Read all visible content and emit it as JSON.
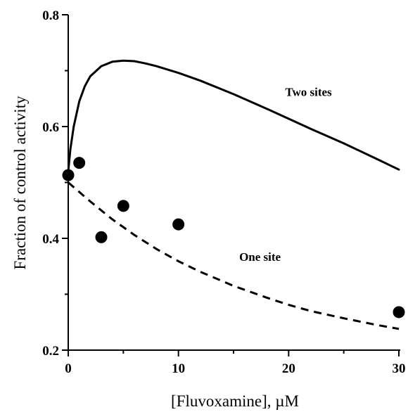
{
  "chart_data": {
    "type": "scatter",
    "xlabel": "[Fluvoxamine], µM",
    "ylabel": "Fraction of control activity",
    "xlim": [
      0,
      30
    ],
    "ylim": [
      0.2,
      0.8
    ],
    "xticks": [
      0,
      10,
      20,
      30
    ],
    "xticks_minor": [
      5,
      15,
      25
    ],
    "yticks": [
      0.2,
      0.4,
      0.6,
      0.8
    ],
    "yticks_minor": [
      0.3,
      0.5,
      0.7
    ],
    "grid": false,
    "points": {
      "x": [
        0,
        1,
        3,
        5,
        10,
        30
      ],
      "y": [
        0.513,
        0.535,
        0.402,
        0.458,
        0.425,
        0.268
      ]
    },
    "curves": [
      {
        "label": "Two sites",
        "style": "solid",
        "x": [
          0,
          0.2,
          0.5,
          1,
          1.5,
          2,
          3,
          4,
          5,
          6,
          7,
          8,
          10,
          12,
          15,
          18,
          20,
          22,
          25,
          28,
          30
        ],
        "y": [
          0.52,
          0.56,
          0.6,
          0.645,
          0.672,
          0.69,
          0.708,
          0.716,
          0.718,
          0.717,
          0.713,
          0.708,
          0.696,
          0.682,
          0.658,
          0.632,
          0.614,
          0.596,
          0.57,
          0.542,
          0.523
        ]
      },
      {
        "label": "One site",
        "style": "dashed",
        "x": [
          0,
          2,
          4,
          6,
          8,
          10,
          12,
          15,
          18,
          20,
          22,
          25,
          28,
          30
        ],
        "y": [
          0.5,
          0.466,
          0.434,
          0.406,
          0.381,
          0.359,
          0.34,
          0.315,
          0.294,
          0.281,
          0.27,
          0.257,
          0.245,
          0.238
        ]
      }
    ],
    "annotations": [
      {
        "text": "Two sites",
        "x": 21.8,
        "y": 0.655
      },
      {
        "text": "One site",
        "x": 17.4,
        "y": 0.36
      }
    ]
  }
}
